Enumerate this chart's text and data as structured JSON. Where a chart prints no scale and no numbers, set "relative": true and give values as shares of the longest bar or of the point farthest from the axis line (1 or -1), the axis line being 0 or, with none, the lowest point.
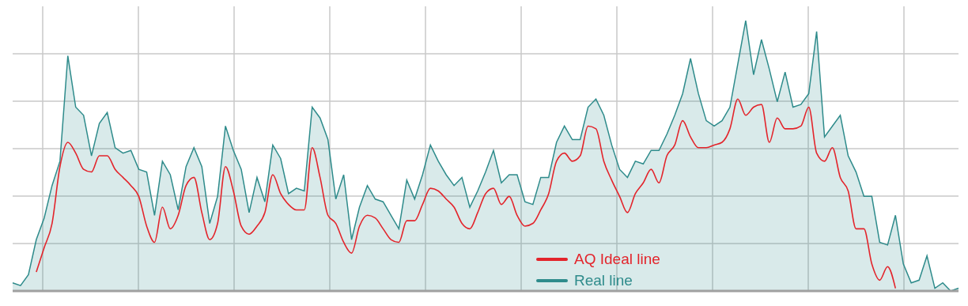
{
  "chart_data": {
    "type": "area",
    "relative": true,
    "grid": true,
    "tick_labels": false,
    "legend": "bottom",
    "categories": [
      null,
      null,
      null,
      null,
      null,
      null,
      null,
      null,
      null,
      null,
      null,
      null,
      null,
      null,
      null,
      null,
      null,
      null,
      null,
      null,
      null,
      null,
      null,
      null,
      null,
      null,
      null,
      null,
      null,
      null,
      null,
      null,
      null,
      null,
      null,
      null,
      null,
      null,
      null,
      null,
      null,
      null,
      null,
      null,
      null,
      null,
      null,
      null,
      null,
      null,
      null,
      null,
      null,
      null,
      null,
      null,
      null,
      null,
      null,
      null,
      null,
      null,
      null,
      null,
      null,
      null,
      null,
      null,
      null,
      null,
      null,
      null,
      null,
      null,
      null,
      null,
      null,
      null,
      null,
      null,
      null,
      null,
      null,
      null,
      null,
      null,
      null,
      null,
      null,
      null,
      null,
      null,
      null,
      null,
      null,
      null,
      null,
      null,
      null,
      null,
      null,
      null,
      null,
      null,
      null,
      null,
      null,
      null,
      null,
      null,
      null,
      null,
      null,
      null,
      null,
      null,
      null,
      null,
      null,
      null,
      null
    ],
    "series": [
      {
        "name": "AQ Ideal line",
        "type": "line",
        "color": "#e3242b",
        "values": [
          null,
          null,
          null,
          0.07,
          0.16,
          0.25,
          0.46,
          0.55,
          0.51,
          0.45,
          0.44,
          0.5,
          0.5,
          0.45,
          0.42,
          0.39,
          0.35,
          0.24,
          0.18,
          0.31,
          0.23,
          0.28,
          0.39,
          0.42,
          0.29,
          0.19,
          0.25,
          0.46,
          0.37,
          0.24,
          0.21,
          0.24,
          0.29,
          0.43,
          0.36,
          0.32,
          0.3,
          0.3,
          0.53,
          0.42,
          0.28,
          0.25,
          0.18,
          0.14,
          0.24,
          0.28,
          0.27,
          0.23,
          0.19,
          0.18,
          0.26,
          0.26,
          0.32,
          0.38,
          0.37,
          0.34,
          0.31,
          0.25,
          0.23,
          0.29,
          0.36,
          0.38,
          0.32,
          0.35,
          0.28,
          0.24,
          0.25,
          0.3,
          0.36,
          0.48,
          0.51,
          0.48,
          0.5,
          0.61,
          0.6,
          0.48,
          0.41,
          0.35,
          0.29,
          0.36,
          0.4,
          0.45,
          0.4,
          0.5,
          0.54,
          0.63,
          0.57,
          0.53,
          0.53,
          0.54,
          0.55,
          0.6,
          0.71,
          0.65,
          0.68,
          0.69,
          0.55,
          0.64,
          0.6,
          0.6,
          0.61,
          0.68,
          0.51,
          0.48,
          0.53,
          0.42,
          0.37,
          0.23,
          0.23,
          0.1,
          0.04,
          0.09,
          0.01,
          null,
          null,
          null,
          null,
          null,
          null,
          null,
          null
        ]
      },
      {
        "name": "Real line",
        "type": "area",
        "color": "#2e8b8b",
        "values": [
          0.03,
          0.02,
          0.06,
          0.19,
          0.27,
          0.39,
          0.48,
          0.87,
          0.68,
          0.65,
          0.5,
          0.62,
          0.66,
          0.53,
          0.51,
          0.52,
          0.45,
          0.44,
          0.28,
          0.48,
          0.43,
          0.3,
          0.46,
          0.53,
          0.46,
          0.25,
          0.35,
          0.61,
          0.52,
          0.45,
          0.29,
          0.42,
          0.33,
          0.54,
          0.49,
          0.36,
          0.38,
          0.37,
          0.68,
          0.64,
          0.56,
          0.34,
          0.43,
          0.19,
          0.31,
          0.39,
          0.34,
          0.33,
          0.28,
          0.23,
          0.41,
          0.34,
          0.43,
          0.54,
          0.48,
          0.43,
          0.39,
          0.42,
          0.31,
          0.37,
          0.44,
          0.52,
          0.4,
          0.43,
          0.43,
          0.33,
          0.32,
          0.42,
          0.42,
          0.55,
          0.61,
          0.56,
          0.56,
          0.68,
          0.71,
          0.65,
          0.54,
          0.45,
          0.42,
          0.48,
          0.47,
          0.52,
          0.52,
          0.58,
          0.65,
          0.73,
          0.86,
          0.73,
          0.63,
          0.61,
          0.63,
          0.68,
          0.84,
          1.0,
          0.8,
          0.93,
          0.82,
          0.7,
          0.81,
          0.68,
          0.69,
          0.73,
          0.96,
          0.57,
          0.61,
          0.65,
          0.5,
          0.44,
          0.35,
          0.35,
          0.18,
          0.17,
          0.28,
          0.1,
          0.03,
          0.04,
          0.13,
          0.01,
          0.03,
          0,
          0.01
        ]
      }
    ]
  }
}
